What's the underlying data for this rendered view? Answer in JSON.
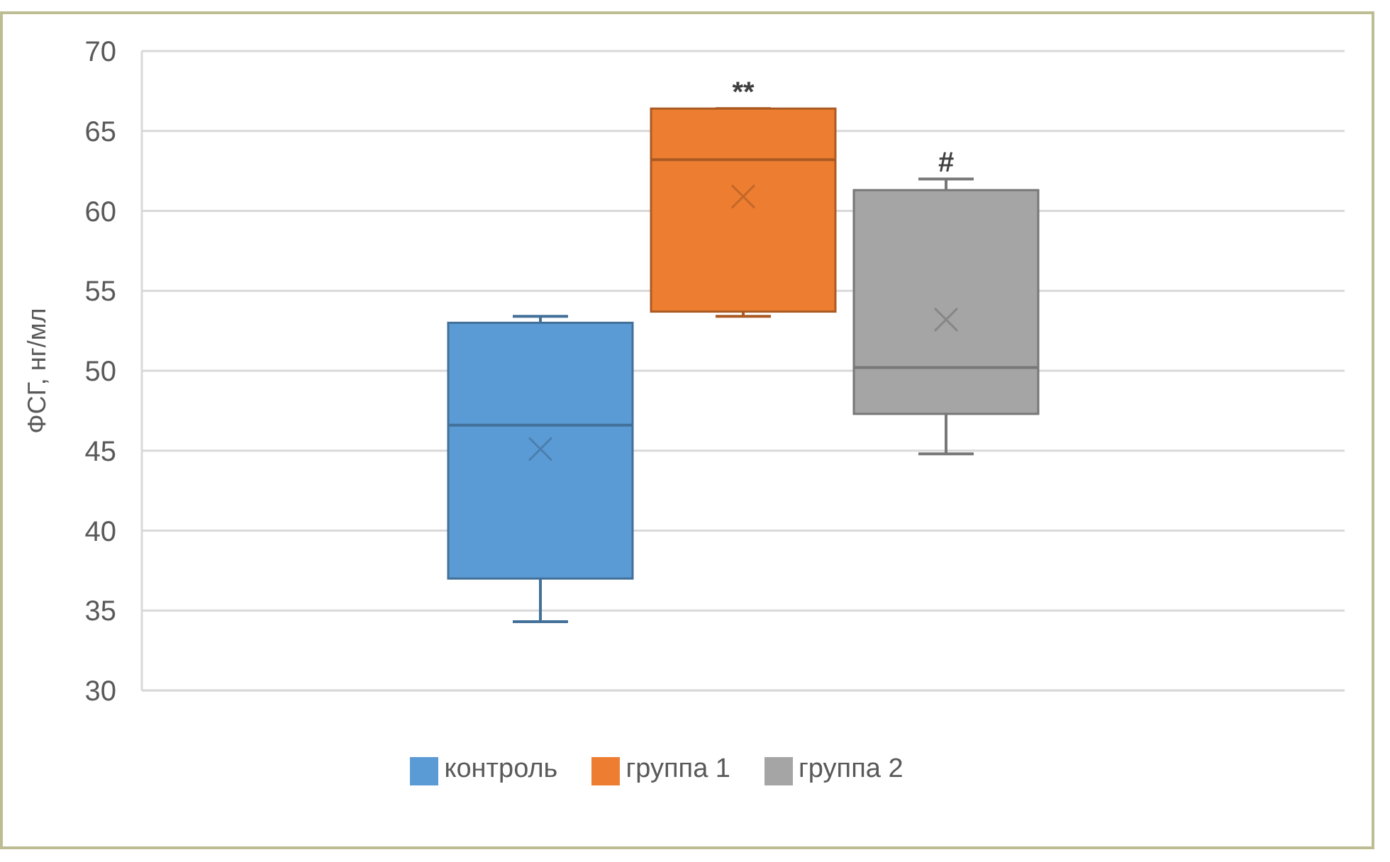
{
  "chart_data": {
    "type": "box",
    "ylabel": "ФСГ, нг/мл",
    "categories": [
      null
    ],
    "series": [
      {
        "name": "контроль",
        "color": "#5b9bd5",
        "boxes": [
          {
            "low": 34.3,
            "q1": 37.0,
            "median": 46.6,
            "q3": 53.0,
            "high": 53.4,
            "mean": 45.1
          }
        ]
      },
      {
        "name": "группа 1",
        "color": "#ed7d31",
        "boxes": [
          {
            "low": 53.4,
            "q1": 53.7,
            "median": 63.2,
            "q3": 66.4,
            "high": 66.4,
            "mean": 60.9
          }
        ]
      },
      {
        "name": "группа 2",
        "color": "#a5a5a5",
        "boxes": [
          {
            "low": 44.8,
            "q1": 47.3,
            "median": 50.2,
            "q3": 61.3,
            "high": 62.0,
            "mean": 53.2
          }
        ]
      }
    ],
    "ylim": [
      30,
      70
    ],
    "yticks": [
      30,
      35,
      40,
      45,
      50,
      55,
      60,
      65,
      70
    ],
    "grid": "y",
    "legend": "bottom",
    "annotations": [
      "**",
      "#"
    ]
  }
}
